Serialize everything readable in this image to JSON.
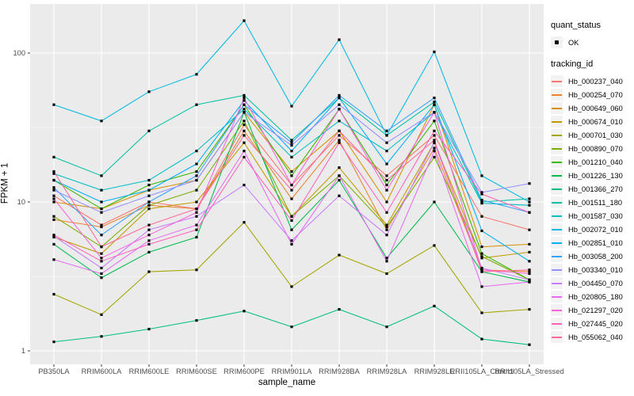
{
  "figure": {
    "bg": "#FFFFFF"
  },
  "panel": {
    "bg": "#EBEBEB",
    "grid_color": "#FFFFFF",
    "tick_color": "#333333",
    "tick_label_color": "#4D4D4D",
    "axis_title_color": "#000000",
    "point_color": "#000000",
    "legend_key_bg": "#F2F2F2"
  },
  "legend": {
    "quant_status": {
      "title": "quant_status",
      "items": [
        {
          "label": "OK",
          "symbol": "black-point"
        }
      ]
    },
    "tracking_id_title": "tracking_id"
  },
  "chart_data": {
    "type": "line",
    "title": "",
    "xlabel": "sample_name",
    "ylabel": "FPKM + 1",
    "y_scale": "log10",
    "y_ticks": [
      1,
      10,
      100
    ],
    "y_minor_gridlines": [
      3.162,
      31.623
    ],
    "ylim": [
      0.8,
      215
    ],
    "grid": true,
    "legend_position": "right",
    "marker": "small black square",
    "categories": [
      "PB350LA",
      "RRIM600LA",
      "RRIM600LE",
      "RRIM600SE",
      "RRIM600PE",
      "RRIM901LA",
      "RRIM928BA",
      "RRIM928LA",
      "RRIM928LE",
      "RRII105LA_Control",
      "RRII105LA_Stressed"
    ],
    "series": [
      {
        "name": "Hb_000237_040",
        "color": "#F8766D",
        "values": [
          11,
          7,
          10,
          9,
          33,
          13,
          28,
          15,
          28,
          8,
          6.5
        ]
      },
      {
        "name": "Hb_000254_070",
        "color": "#EA8331",
        "values": [
          7.6,
          6.8,
          9.5,
          9,
          30,
          10.5,
          26,
          6.5,
          23,
          3.5,
          3.4
        ]
      },
      {
        "name": "Hb_000649_060",
        "color": "#D89000",
        "values": [
          10,
          9,
          12,
          14,
          40,
          16,
          30,
          10,
          45,
          5,
          5.2
        ]
      },
      {
        "name": "Hb_000674_010",
        "color": "#C09B00",
        "values": [
          5.8,
          4.5,
          9,
          10,
          25,
          8,
          17,
          7,
          25,
          4.2,
          4.6
        ]
      },
      {
        "name": "Hb_000701_030",
        "color": "#A3A500",
        "values": [
          2.4,
          1.75,
          3.4,
          3.5,
          7.3,
          2.7,
          4.4,
          3.3,
          5.1,
          1.8,
          1.9
        ]
      },
      {
        "name": "Hb_000890_070",
        "color": "#7CAE00",
        "values": [
          8,
          5,
          9.5,
          12,
          35,
          8,
          15,
          6.8,
          20,
          4.3,
          3.0
        ]
      },
      {
        "name": "Hb_001210_040",
        "color": "#39B600",
        "values": [
          14,
          9,
          13,
          16,
          45,
          15,
          42,
          13,
          35,
          4.5,
          3.0
        ]
      },
      {
        "name": "Hb_001226_130",
        "color": "#00BB4E",
        "values": [
          5.2,
          3.1,
          4.6,
          5.8,
          40,
          6.5,
          14,
          4.2,
          10,
          3.4,
          2.9
        ]
      },
      {
        "name": "Hb_001366_270",
        "color": "#00BF7D",
        "values": [
          1.15,
          1.25,
          1.4,
          1.6,
          1.85,
          1.45,
          1.9,
          1.45,
          2.0,
          1.2,
          1.1
        ]
      },
      {
        "name": "Hb_001511_180",
        "color": "#00C1A3",
        "values": [
          20,
          15,
          30,
          45,
          52,
          26,
          50,
          28,
          47,
          10,
          10.5
        ]
      },
      {
        "name": "Hb_001587_030",
        "color": "#00BFC4",
        "values": [
          15.5,
          12,
          14,
          22,
          42,
          20,
          35,
          22,
          40,
          9.8,
          9.5
        ]
      },
      {
        "name": "Hb_002072_010",
        "color": "#00BAE0",
        "values": [
          45,
          35,
          55,
          72,
          165,
          44,
          123,
          28,
          102,
          15,
          10
        ]
      },
      {
        "name": "Hb_002851_010",
        "color": "#00B0F6",
        "values": [
          14,
          10,
          12,
          18,
          48,
          22,
          50,
          18,
          45,
          6.4,
          4.0
        ]
      },
      {
        "name": "Hb_003058_200",
        "color": "#35A2FF",
        "values": [
          12.5,
          6,
          10,
          15,
          45,
          25,
          52,
          30,
          50,
          10.3,
          8.5
        ]
      },
      {
        "name": "Hb_003340_010",
        "color": "#9590FF",
        "values": [
          12,
          8.5,
          11,
          14,
          40,
          24,
          45,
          25,
          40,
          11.6,
          13.3
        ]
      },
      {
        "name": "Hb_004450_070",
        "color": "#C77CFF",
        "values": [
          5.9,
          3.6,
          6.5,
          8,
          13,
          5.5,
          11,
          6,
          25,
          3.6,
          3.0
        ]
      },
      {
        "name": "Hb_020805_180",
        "color": "#E76BF3",
        "values": [
          4.1,
          3.3,
          5.5,
          7,
          22,
          5.2,
          15,
          4.0,
          22,
          2.7,
          2.9
        ]
      },
      {
        "name": "Hb_021297_020",
        "color": "#FA62DB",
        "values": [
          10.5,
          4.2,
          6.0,
          8.5,
          50,
          13,
          42,
          12,
          40,
          3.5,
          3.3
        ]
      },
      {
        "name": "Hb_027445_020",
        "color": "#FF62BC",
        "values": [
          6,
          4.0,
          5.2,
          6.5,
          20,
          7.5,
          25,
          8.5,
          30,
          11.3,
          8.5
        ]
      },
      {
        "name": "Hb_055062_040",
        "color": "#FF6A98",
        "values": [
          16,
          5,
          7,
          9,
          28,
          12,
          30,
          14,
          26,
          3.4,
          3.5
        ]
      }
    ]
  }
}
